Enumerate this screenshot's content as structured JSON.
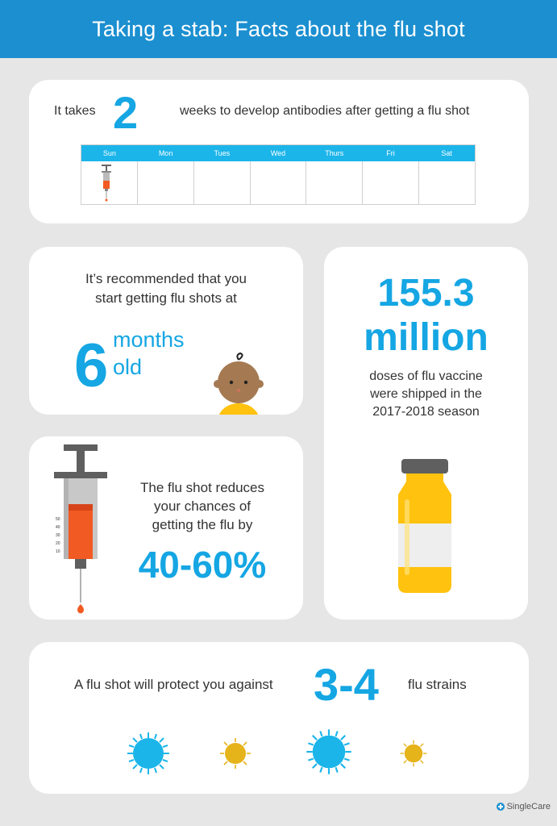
{
  "header": {
    "title": "Taking a stab: Facts about the flu shot"
  },
  "antibodies": {
    "prefix": "It takes",
    "number": "2",
    "suffix": "weeks to develop antibodies after getting a flu shot",
    "days": [
      "Sun",
      "Mon",
      "Tues",
      "Wed",
      "Thurs",
      "Fri",
      "Sat"
    ]
  },
  "age": {
    "text_line1": "It’s recommended that you",
    "text_line2": "start getting flu shots at",
    "number": "6",
    "unit_line1": "months",
    "unit_line2": "old"
  },
  "doses": {
    "number_line1": "155.3",
    "number_line2": "million",
    "text_line1": "doses of flu vaccine",
    "text_line2": "were shipped in the",
    "text_line3": "2017-2018 season"
  },
  "reduction": {
    "text_line1": "The flu shot reduces",
    "text_line2": "your chances of",
    "text_line3": "getting the flu by",
    "percent": "40-60%",
    "scale": [
      "50",
      "40",
      "30",
      "20",
      "10"
    ]
  },
  "strains": {
    "prefix": "A flu shot will protect you against",
    "number": "3-4",
    "suffix": "flu strains"
  },
  "brand": {
    "name": "SingleCare"
  },
  "colors": {
    "header": "#1b8fd0",
    "accent": "#15a6e3",
    "syringe_fluid": "#f15a22",
    "vial": "#ffc20e",
    "virus_blue": "#1cb5ea",
    "virus_yellow": "#e5b31a"
  }
}
